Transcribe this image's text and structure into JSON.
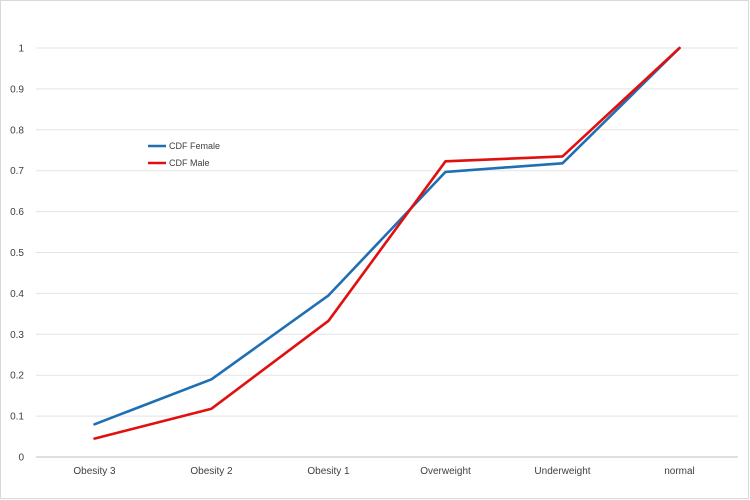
{
  "chart_data": {
    "type": "line",
    "categories": [
      "Obesity 3",
      "Obesity 2",
      "Obesity 1",
      "Overweight",
      "Underweight",
      "normal"
    ],
    "series": [
      {
        "name": "CDF Female",
        "color": "#1f6fb4",
        "values": [
          0.08,
          0.19,
          0.395,
          0.697,
          0.718,
          1.0
        ]
      },
      {
        "name": "CDF Male",
        "color": "#e01010",
        "values": [
          0.045,
          0.118,
          0.333,
          0.723,
          0.735,
          1.0
        ]
      }
    ],
    "ylim": [
      0,
      1
    ],
    "yticks": [
      "0",
      "0.1",
      "0.2",
      "0.3",
      "0.4",
      "0.5",
      "0.6",
      "0.7",
      "0.8",
      "0.9",
      "1"
    ],
    "grid": true,
    "legend_position": "upper-left"
  }
}
